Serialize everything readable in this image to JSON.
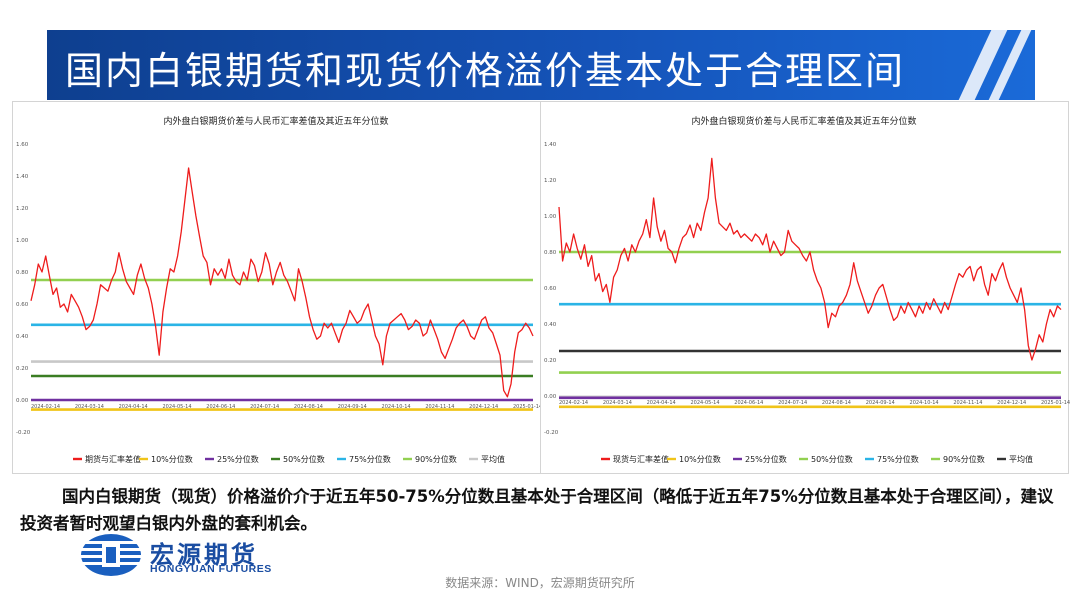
{
  "header": {
    "title": "国内白银期货和现货价格溢价基本处于合理区间"
  },
  "body_text": "国内白银期货（现货）价格溢价介于近五年50-75%分位数且基本处于合理区间（略低于近五年75%分位数且基本处于合理区间），建议投资者暂时观望白银内外盘的套利机会。",
  "logo": {
    "cn": "宏源期货",
    "en": "HONGYUAN FUTURES"
  },
  "source": "数据来源：WIND，宏源期货研究所",
  "chart_data": [
    {
      "type": "line",
      "title": "内外盘白银期货价差与人民币汇率差值及其近五年分位数",
      "ylim": [
        -0.2,
        1.6
      ],
      "y_ticks": [
        "1.60",
        "1.40",
        "1.20",
        "1.00",
        "0.80",
        "0.60",
        "0.40",
        "0.20",
        "0.00",
        "-0.20"
      ],
      "x_ticks": [
        "2024-02-14",
        "2024-03-14",
        "2024-04-14",
        "2024-05-14",
        "2024-06-14",
        "2024-07-14",
        "2024-08-14",
        "2024-09-14",
        "2024-10-14",
        "2024-11-14",
        "2024-12-14",
        "2025-01-14"
      ],
      "grid": false,
      "legend_position": "bottom",
      "series": [
        {
          "name": "期货与汇率差值",
          "color": "#ee1c1c",
          "values": [
            0.62,
            0.72,
            0.85,
            0.8,
            0.9,
            0.78,
            0.66,
            0.7,
            0.58,
            0.6,
            0.55,
            0.66,
            0.62,
            0.58,
            0.52,
            0.44,
            0.46,
            0.5,
            0.6,
            0.72,
            0.7,
            0.68,
            0.75,
            0.8,
            0.92,
            0.82,
            0.74,
            0.7,
            0.66,
            0.78,
            0.85,
            0.76,
            0.7,
            0.6,
            0.46,
            0.28,
            0.55,
            0.7,
            0.82,
            0.8,
            0.9,
            1.05,
            1.25,
            1.45,
            1.3,
            1.15,
            1.02,
            0.9,
            0.86,
            0.72,
            0.82,
            0.78,
            0.82,
            0.76,
            0.88,
            0.78,
            0.74,
            0.72,
            0.8,
            0.75,
            0.88,
            0.84,
            0.74,
            0.8,
            0.92,
            0.85,
            0.72,
            0.8,
            0.86,
            0.78,
            0.74,
            0.68,
            0.62,
            0.82,
            0.74,
            0.64,
            0.52,
            0.44,
            0.38,
            0.4,
            0.48,
            0.45,
            0.48,
            0.42,
            0.36,
            0.44,
            0.48,
            0.56,
            0.52,
            0.48,
            0.5,
            0.56,
            0.6,
            0.5,
            0.4,
            0.35,
            0.22,
            0.4,
            0.48,
            0.5,
            0.52,
            0.54,
            0.5,
            0.44,
            0.46,
            0.5,
            0.48,
            0.4,
            0.42,
            0.5,
            0.44,
            0.38,
            0.3,
            0.26,
            0.32,
            0.38,
            0.45,
            0.48,
            0.5,
            0.46,
            0.4,
            0.38,
            0.44,
            0.5,
            0.52,
            0.45,
            0.42,
            0.35,
            0.28,
            0.06,
            0.02,
            0.1,
            0.3,
            0.42,
            0.44,
            0.48,
            0.45,
            0.4
          ]
        },
        {
          "name": "10%分位数",
          "color": "#f0c419",
          "values": [
            -0.06
          ]
        },
        {
          "name": "25%分位数",
          "color": "#7030a0",
          "values": [
            0.0
          ]
        },
        {
          "name": "50%分位数",
          "color": "#3a7d22",
          "values": [
            0.15
          ]
        },
        {
          "name": "75%分位数",
          "color": "#2ab4e6",
          "values": [
            0.47
          ]
        },
        {
          "name": "90%分位数",
          "color": "#92d050",
          "values": [
            0.75
          ]
        },
        {
          "name": "平均值",
          "color": "#c8c8c8",
          "values": [
            0.24
          ]
        }
      ]
    },
    {
      "type": "line",
      "title": "内外盘白银现货价差与人民币汇率差值及其近五年分位数",
      "ylim": [
        -0.2,
        1.4
      ],
      "y_ticks": [
        "1.40",
        "1.20",
        "1.00",
        "0.80",
        "0.60",
        "0.40",
        "0.20",
        "0.00",
        "-0.20"
      ],
      "x_ticks": [
        "2024-02-14",
        "2024-03-14",
        "2024-04-14",
        "2024-05-14",
        "2024-06-14",
        "2024-07-14",
        "2024-08-14",
        "2024-09-14",
        "2024-10-14",
        "2024-11-14",
        "2024-12-14",
        "2025-01-14"
      ],
      "grid": false,
      "legend_position": "bottom",
      "series": [
        {
          "name": "现货与汇率差值",
          "color": "#ee1c1c",
          "values": [
            1.05,
            0.75,
            0.85,
            0.8,
            0.9,
            0.82,
            0.76,
            0.84,
            0.72,
            0.78,
            0.64,
            0.68,
            0.58,
            0.62,
            0.52,
            0.66,
            0.7,
            0.78,
            0.82,
            0.75,
            0.84,
            0.8,
            0.86,
            0.9,
            0.98,
            0.88,
            1.1,
            0.94,
            0.86,
            0.92,
            0.82,
            0.8,
            0.74,
            0.82,
            0.88,
            0.9,
            0.95,
            0.88,
            0.96,
            0.92,
            1.02,
            1.1,
            1.32,
            1.1,
            0.96,
            0.94,
            0.92,
            0.96,
            0.9,
            0.92,
            0.88,
            0.9,
            0.88,
            0.86,
            0.9,
            0.88,
            0.84,
            0.9,
            0.8,
            0.86,
            0.82,
            0.78,
            0.8,
            0.92,
            0.86,
            0.84,
            0.82,
            0.78,
            0.75,
            0.8,
            0.7,
            0.64,
            0.6,
            0.52,
            0.38,
            0.46,
            0.44,
            0.5,
            0.52,
            0.56,
            0.62,
            0.74,
            0.64,
            0.58,
            0.52,
            0.46,
            0.5,
            0.56,
            0.6,
            0.62,
            0.55,
            0.48,
            0.42,
            0.44,
            0.5,
            0.46,
            0.52,
            0.48,
            0.44,
            0.5,
            0.46,
            0.52,
            0.48,
            0.54,
            0.5,
            0.46,
            0.52,
            0.48,
            0.55,
            0.62,
            0.68,
            0.66,
            0.7,
            0.72,
            0.64,
            0.7,
            0.72,
            0.62,
            0.56,
            0.68,
            0.64,
            0.7,
            0.74,
            0.66,
            0.6,
            0.56,
            0.52,
            0.6,
            0.48,
            0.28,
            0.2,
            0.26,
            0.34,
            0.3,
            0.4,
            0.48,
            0.44,
            0.5,
            0.48
          ]
        },
        {
          "name": "10%分位数",
          "color": "#f0c419",
          "values": [
            -0.06
          ]
        },
        {
          "name": "25%分位数",
          "color": "#7030a0",
          "values": [
            -0.01
          ]
        },
        {
          "name": "50%分位数",
          "color": "#92d050",
          "values": [
            0.13
          ]
        },
        {
          "name": "75%分位数",
          "color": "#2ab4e6",
          "values": [
            0.51
          ]
        },
        {
          "name": "90%分位数",
          "color": "#92d050",
          "values": [
            0.8
          ]
        },
        {
          "name": "平均值",
          "color": "#333333",
          "values": [
            0.25
          ]
        }
      ]
    }
  ]
}
